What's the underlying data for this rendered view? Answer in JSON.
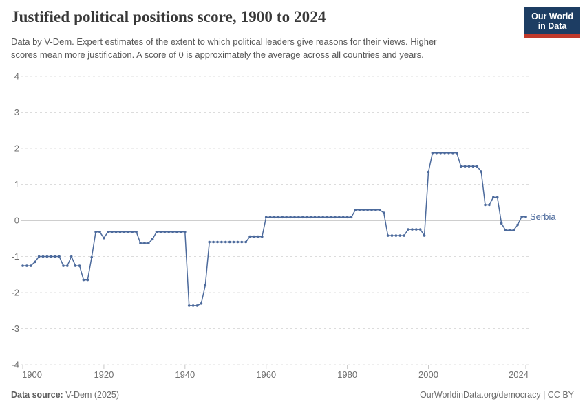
{
  "header": {
    "title": "Justified political positions score, 1900 to 2024",
    "subtitle_lines": [
      "Data by V-Dem. Expert estimates of the extent to which political leaders give reasons for their views. Higher",
      "scores mean more justification. A score of 0 is approximately the average across all countries and years."
    ],
    "logo": {
      "line1": "Our World",
      "line2": "in Data",
      "bg_color": "#1d3d63",
      "accent_color": "#c0392b"
    }
  },
  "chart_data": {
    "type": "line",
    "title": "Justified political positions score, 1900 to 2024",
    "xlabel": "",
    "ylabel": "",
    "ylim": [
      -4,
      4
    ],
    "yticks": [
      4,
      3,
      2,
      1,
      0,
      -1,
      -2,
      -3,
      -4
    ],
    "xticks": [
      1900,
      1920,
      1940,
      1960,
      1980,
      2000,
      2024
    ],
    "grid": "horizontal dashed; zero line solid",
    "legend_position": "end-of-line label",
    "x_start": 1900,
    "x_end": 2024,
    "series": [
      {
        "name": "Serbia",
        "color": "#4c6a9c",
        "values": [
          -1.26,
          -1.26,
          -1.26,
          -1.15,
          -1,
          -1,
          -1,
          -1,
          -1,
          -1,
          -1.26,
          -1.26,
          -1,
          -1.26,
          -1.26,
          -1.65,
          -1.65,
          -1.02,
          -0.32,
          -0.32,
          -0.49,
          -0.32,
          -0.32,
          -0.32,
          -0.32,
          -0.32,
          -0.32,
          -0.32,
          -0.32,
          -0.63,
          -0.63,
          -0.63,
          -0.52,
          -0.32,
          -0.32,
          -0.32,
          -0.32,
          -0.32,
          -0.32,
          -0.32,
          -0.32,
          -2.36,
          -2.36,
          -2.36,
          -2.3,
          -1.8,
          -0.6,
          -0.6,
          -0.6,
          -0.6,
          -0.6,
          -0.6,
          -0.6,
          -0.6,
          -0.6,
          -0.6,
          -0.45,
          -0.45,
          -0.45,
          -0.45,
          0.09,
          0.09,
          0.09,
          0.09,
          0.09,
          0.09,
          0.09,
          0.09,
          0.09,
          0.09,
          0.09,
          0.09,
          0.09,
          0.09,
          0.09,
          0.09,
          0.09,
          0.09,
          0.09,
          0.09,
          0.09,
          0.09,
          0.29,
          0.29,
          0.29,
          0.29,
          0.29,
          0.29,
          0.29,
          0.21,
          -0.42,
          -0.42,
          -0.42,
          -0.42,
          -0.42,
          -0.25,
          -0.25,
          -0.25,
          -0.25,
          -0.42,
          1.34,
          1.87,
          1.87,
          1.87,
          1.87,
          1.87,
          1.87,
          1.87,
          1.5,
          1.5,
          1.5,
          1.5,
          1.5,
          1.35,
          0.43,
          0.43,
          0.64,
          0.64,
          -0.08,
          -0.27,
          -0.27,
          -0.27,
          -0.12,
          0.1,
          0.1
        ]
      }
    ],
    "colors": {
      "grid": "#dcdcdc",
      "zero_line": "#9e9e9e",
      "axis_text": "#707070"
    }
  },
  "footer": {
    "source_label": "Data source:",
    "source_value": " V-Dem (2025)",
    "right_text": "OurWorldinData.org/democracy | CC BY"
  }
}
